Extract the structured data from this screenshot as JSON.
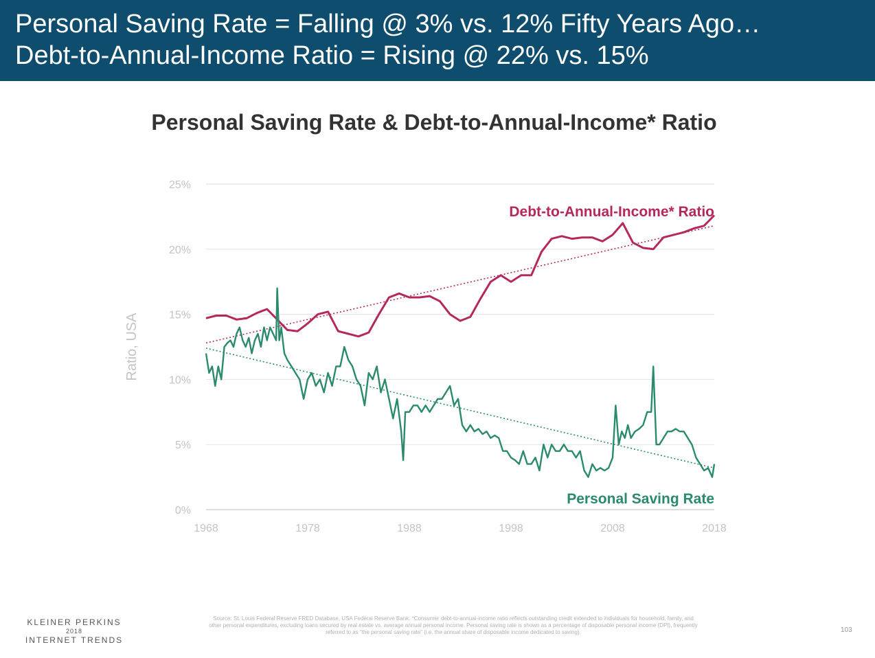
{
  "header": {
    "line1": "Personal Saving Rate = Falling @ 3% vs. 12% Fifty Years Ago…",
    "line2": "Debt-to-Annual-Income Ratio = Rising @ 22% vs. 15%"
  },
  "footer": {
    "logo_line1": "KLEINER PERKINS",
    "logo_line2": "2018",
    "logo_line3": "INTERNET TRENDS",
    "source": "Source: St. Louis Federal Reserve FRED Database, USA Federal Reserve Bank. *Consumer debt-to-annual-income ratio reflects outstanding credit extended to individuals for household, family, and other personal expenditures, excluding loans secured by real estate vs. average annual personal income. Personal saving rate is shown as a percentage of disposable personal income (DPI), frequently referred to as \"the personal saving rate\" (i.e. the annual share of disposable income dedicated to saving).",
    "page_number": "103"
  },
  "chart_data": {
    "type": "line",
    "title": "Personal Saving Rate & Debt-to-Annual-Income* Ratio",
    "ylabel": "Ratio, USA",
    "xlabel": "",
    "xlim": [
      1968,
      2018
    ],
    "ylim": [
      0,
      25
    ],
    "x_ticks": [
      "1968",
      "1978",
      "1988",
      "1998",
      "2008",
      "2018"
    ],
    "y_ticks": [
      "0%",
      "5%",
      "10%",
      "15%",
      "20%",
      "25%"
    ],
    "grid": "horizontal",
    "series": [
      {
        "name": "Debt-to-Annual-Income* Ratio",
        "color": "#b5285e",
        "trend": [
          12.8,
          21.8
        ],
        "x": [
          1968,
          1969,
          1970,
          1971,
          1972,
          1973,
          1974,
          1975,
          1976,
          1977,
          1978,
          1979,
          1980,
          1981,
          1982,
          1983,
          1984,
          1985,
          1986,
          1987,
          1988,
          1989,
          1990,
          1991,
          1992,
          1993,
          1994,
          1995,
          1996,
          1997,
          1998,
          1999,
          2000,
          2001,
          2002,
          2003,
          2004,
          2005,
          2006,
          2007,
          2008,
          2009,
          2010,
          2011,
          2012,
          2013,
          2014,
          2015,
          2016,
          2017,
          2018
        ],
        "values": [
          14.7,
          14.9,
          14.9,
          14.6,
          14.7,
          15.1,
          15.4,
          14.6,
          13.8,
          13.7,
          14.3,
          15.0,
          15.2,
          13.7,
          13.5,
          13.3,
          13.6,
          15.0,
          16.3,
          16.6,
          16.3,
          16.3,
          16.4,
          16.0,
          15.0,
          14.5,
          14.8,
          16.2,
          17.5,
          18.0,
          17.5,
          18.0,
          18.0,
          19.8,
          20.8,
          21.0,
          20.8,
          20.9,
          20.9,
          20.6,
          21.1,
          22.0,
          20.5,
          20.1,
          20.0,
          20.9,
          21.1,
          21.3,
          21.6,
          21.8,
          22.6
        ]
      },
      {
        "name": "Personal Saving Rate",
        "color": "#2a8a6e",
        "trend": [
          12.4,
          3.2
        ],
        "x": [
          1968.0,
          1968.3,
          1968.6,
          1968.9,
          1969.2,
          1969.5,
          1969.8,
          1970.1,
          1970.4,
          1970.7,
          1971.0,
          1971.3,
          1971.6,
          1971.9,
          1972.2,
          1972.5,
          1972.8,
          1973.1,
          1973.4,
          1973.7,
          1974.0,
          1974.3,
          1974.6,
          1974.9,
          1975.0,
          1975.2,
          1975.4,
          1975.7,
          1976.0,
          1976.4,
          1976.8,
          1977.2,
          1977.6,
          1978.0,
          1978.4,
          1978.8,
          1979.2,
          1979.6,
          1980.0,
          1980.4,
          1980.8,
          1981.2,
          1981.6,
          1982.0,
          1982.4,
          1982.8,
          1983.2,
          1983.6,
          1984.0,
          1984.4,
          1984.8,
          1985.2,
          1985.6,
          1986.0,
          1986.4,
          1986.8,
          1987.2,
          1987.4,
          1987.6,
          1988.0,
          1988.4,
          1988.8,
          1989.2,
          1989.6,
          1990.0,
          1990.4,
          1990.8,
          1991.2,
          1991.6,
          1992.0,
          1992.4,
          1992.8,
          1993.2,
          1993.6,
          1994.0,
          1994.4,
          1994.8,
          1995.2,
          1995.6,
          1996.0,
          1996.4,
          1996.8,
          1997.2,
          1997.6,
          1998.0,
          1998.4,
          1998.8,
          1999.2,
          1999.6,
          2000.0,
          2000.4,
          2000.8,
          2001.2,
          2001.6,
          2002.0,
          2002.4,
          2002.8,
          2003.2,
          2003.6,
          2004.0,
          2004.4,
          2004.8,
          2005.2,
          2005.6,
          2006.0,
          2006.4,
          2006.8,
          2007.2,
          2007.6,
          2008.0,
          2008.3,
          2008.6,
          2008.9,
          2009.2,
          2009.5,
          2009.8,
          2010.2,
          2010.6,
          2011.0,
          2011.4,
          2011.8,
          2012.0,
          2012.3,
          2012.6,
          2013.0,
          2013.4,
          2013.8,
          2014.2,
          2014.6,
          2015.0,
          2015.4,
          2015.8,
          2016.2,
          2016.6,
          2017.0,
          2017.4,
          2017.8,
          2018.0
        ],
        "values": [
          12.0,
          10.5,
          11.0,
          9.5,
          11.0,
          10.0,
          12.5,
          12.8,
          13.0,
          12.5,
          13.5,
          14.0,
          13.0,
          12.5,
          13.2,
          12.0,
          13.0,
          13.5,
          12.5,
          14.0,
          13.0,
          14.0,
          13.5,
          13.0,
          17.0,
          13.0,
          14.0,
          12.0,
          11.5,
          11.0,
          10.5,
          10.0,
          8.5,
          10.0,
          10.5,
          9.5,
          10.0,
          9.0,
          10.5,
          9.5,
          11.0,
          11.0,
          12.5,
          11.5,
          11.0,
          10.0,
          9.5,
          8.0,
          10.5,
          10.0,
          11.0,
          9.0,
          10.0,
          8.5,
          7.0,
          8.5,
          6.0,
          3.8,
          7.5,
          7.5,
          8.0,
          8.0,
          7.5,
          8.0,
          7.5,
          8.0,
          8.5,
          8.5,
          9.0,
          9.5,
          8.0,
          8.5,
          6.5,
          6.0,
          6.5,
          6.0,
          6.2,
          5.8,
          6.0,
          5.5,
          5.7,
          5.5,
          4.5,
          4.5,
          4.0,
          3.8,
          3.5,
          4.5,
          3.5,
          3.5,
          4.0,
          3.0,
          5.0,
          4.0,
          5.0,
          4.5,
          4.5,
          5.0,
          4.5,
          4.5,
          4.0,
          4.5,
          3.0,
          2.5,
          3.5,
          3.0,
          3.2,
          3.0,
          3.2,
          4.0,
          8.0,
          5.0,
          6.0,
          5.5,
          6.5,
          5.5,
          6.0,
          6.2,
          6.5,
          7.5,
          7.5,
          11.0,
          5.0,
          5.0,
          5.5,
          6.0,
          6.0,
          6.2,
          6.0,
          6.0,
          5.5,
          5.0,
          4.0,
          3.5,
          3.0,
          3.2,
          2.5,
          3.5
        ]
      }
    ]
  }
}
